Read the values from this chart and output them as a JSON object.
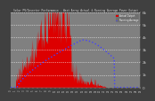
{
  "title": "Solar PV/Inverter Performance - West Array Actual & Running Average Power Output",
  "bg_color": "#404040",
  "plot_bg_color": "#808080",
  "bar_color": "#dd0000",
  "avg_line_color": "#4444ff",
  "grid_color": "#ffffff",
  "ylim": [
    0,
    6
  ],
  "yticks": [
    0,
    1,
    2,
    3,
    4,
    5,
    6
  ],
  "ytick_labels": [
    "0",
    "1k",
    "2k",
    "3k",
    "4k",
    "5k",
    "6k"
  ],
  "legend_actual": "Actual Output",
  "legend_avg": "Running Average",
  "n_points": 300
}
